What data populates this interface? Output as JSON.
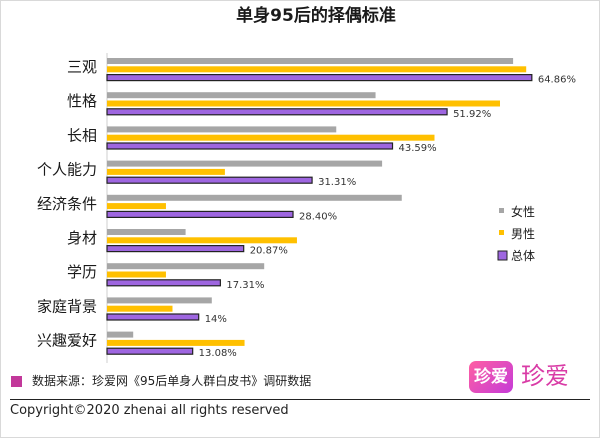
{
  "chart_data": {
    "type": "bar",
    "orientation": "horizontal",
    "title": "单身95后的择偶标准",
    "categories": [
      "三观",
      "性格",
      "长相",
      "个人能力",
      "经济条件",
      "身材",
      "学历",
      "家庭背景",
      "兴趣爱好"
    ],
    "series": [
      {
        "name": "女性",
        "color": "#a6a6a6",
        "values": [
          62,
          41,
          35,
          42,
          45,
          12,
          24,
          16,
          4
        ]
      },
      {
        "name": "男性",
        "color": "#ffc000",
        "values": [
          64,
          60,
          50,
          18,
          9,
          29,
          9,
          10,
          21
        ]
      },
      {
        "name": "总体",
        "color": "#9e66e0",
        "values": [
          64.86,
          51.92,
          43.59,
          31.31,
          28.4,
          20.87,
          17.31,
          14,
          13.08
        ]
      }
    ],
    "data_labels": [
      "64.86%",
      "51.92%",
      "43.59%",
      "31.31%",
      "28.40%",
      "20.87%",
      "17.31%",
      "14%",
      "13.08%"
    ],
    "xlim": [
      0,
      72
    ],
    "grid": false,
    "legend_position": "right",
    "xlabel": "",
    "ylabel": ""
  },
  "source_note": "数据来源：珍爱网《95后单身人群白皮书》调研数据",
  "logo": {
    "icon_text": "珍爱",
    "text": "珍爱"
  },
  "copyright": "Copyright©2020 zhenai all rights reserved"
}
